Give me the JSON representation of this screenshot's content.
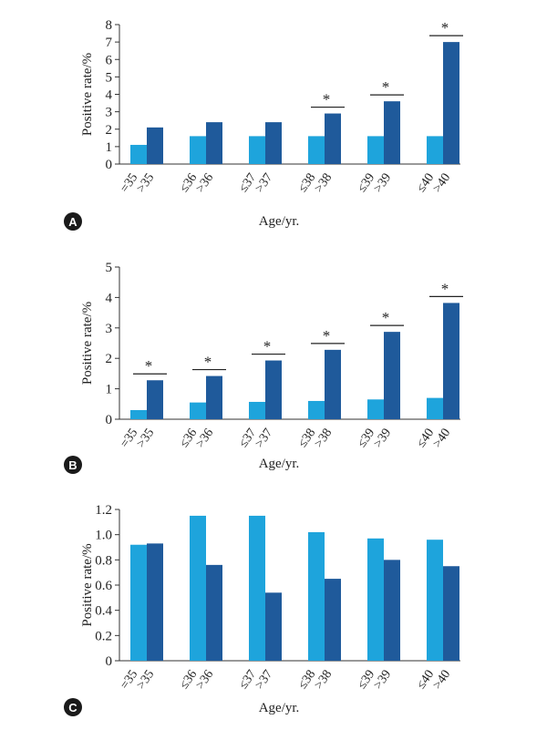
{
  "colors": {
    "series_light": "#1ea4dc",
    "series_dark": "#1f5a9b",
    "badge": "#1a1a1a"
  },
  "chart_data": [
    {
      "type": "bar",
      "panel": "A",
      "categories": [
        [
          "=35",
          ">35"
        ],
        [
          "≤36",
          ">36"
        ],
        [
          "≤37",
          ">37"
        ],
        [
          "≤38",
          ">38"
        ],
        [
          "≤39",
          ">39"
        ],
        [
          "≤40",
          ">40"
        ]
      ],
      "series": [
        {
          "values": [
            1.1,
            1.6,
            1.6,
            1.6,
            1.6,
            1.6
          ]
        },
        {
          "values": [
            2.1,
            2.4,
            2.4,
            2.9,
            3.6,
            7.0
          ]
        }
      ],
      "significant": [
        false,
        false,
        false,
        true,
        true,
        true
      ],
      "significance_mark": "*",
      "xlabel": "Age/yr.",
      "ylabel": "Positive rate/%",
      "ylim": [
        0,
        8
      ],
      "yticks": [
        "0",
        "1",
        "2",
        "3",
        "4",
        "5",
        "6",
        "7",
        "8"
      ]
    },
    {
      "type": "bar",
      "panel": "B",
      "categories": [
        [
          "=35",
          ">35"
        ],
        [
          "≤36",
          ">36"
        ],
        [
          "≤37",
          ">37"
        ],
        [
          "≤38",
          ">38"
        ],
        [
          "≤39",
          ">39"
        ],
        [
          "≤40",
          ">40"
        ]
      ],
      "series": [
        {
          "values": [
            0.3,
            0.55,
            0.57,
            0.6,
            0.65,
            0.7
          ]
        },
        {
          "values": [
            1.28,
            1.42,
            1.93,
            2.28,
            2.87,
            3.82
          ]
        }
      ],
      "significant": [
        true,
        true,
        true,
        true,
        true,
        true
      ],
      "significance_mark": "*",
      "xlabel": "Age/yr.",
      "ylabel": "Positive rate/%",
      "ylim": [
        0,
        5
      ],
      "yticks": [
        "0",
        "1",
        "2",
        "3",
        "4",
        "5"
      ]
    },
    {
      "type": "bar",
      "panel": "C",
      "categories": [
        [
          "=35",
          ">35"
        ],
        [
          "≤36",
          ">36"
        ],
        [
          "≤37",
          ">37"
        ],
        [
          "≤38",
          ">38"
        ],
        [
          "≤39",
          ">39"
        ],
        [
          "≤40",
          ">40"
        ]
      ],
      "series": [
        {
          "values": [
            0.92,
            1.15,
            1.15,
            1.02,
            0.97,
            0.96
          ]
        },
        {
          "values": [
            0.93,
            0.76,
            0.54,
            0.65,
            0.8,
            0.75
          ]
        }
      ],
      "significant": [
        false,
        false,
        false,
        false,
        false,
        false
      ],
      "significance_mark": "*",
      "xlabel": "Age/yr.",
      "ylabel": "Positive rate/%",
      "ylim": [
        0,
        1.2
      ],
      "yticks": [
        "0",
        "0.2",
        "0.4",
        "0.6",
        "0.8",
        "1.0",
        "1.2"
      ]
    }
  ]
}
